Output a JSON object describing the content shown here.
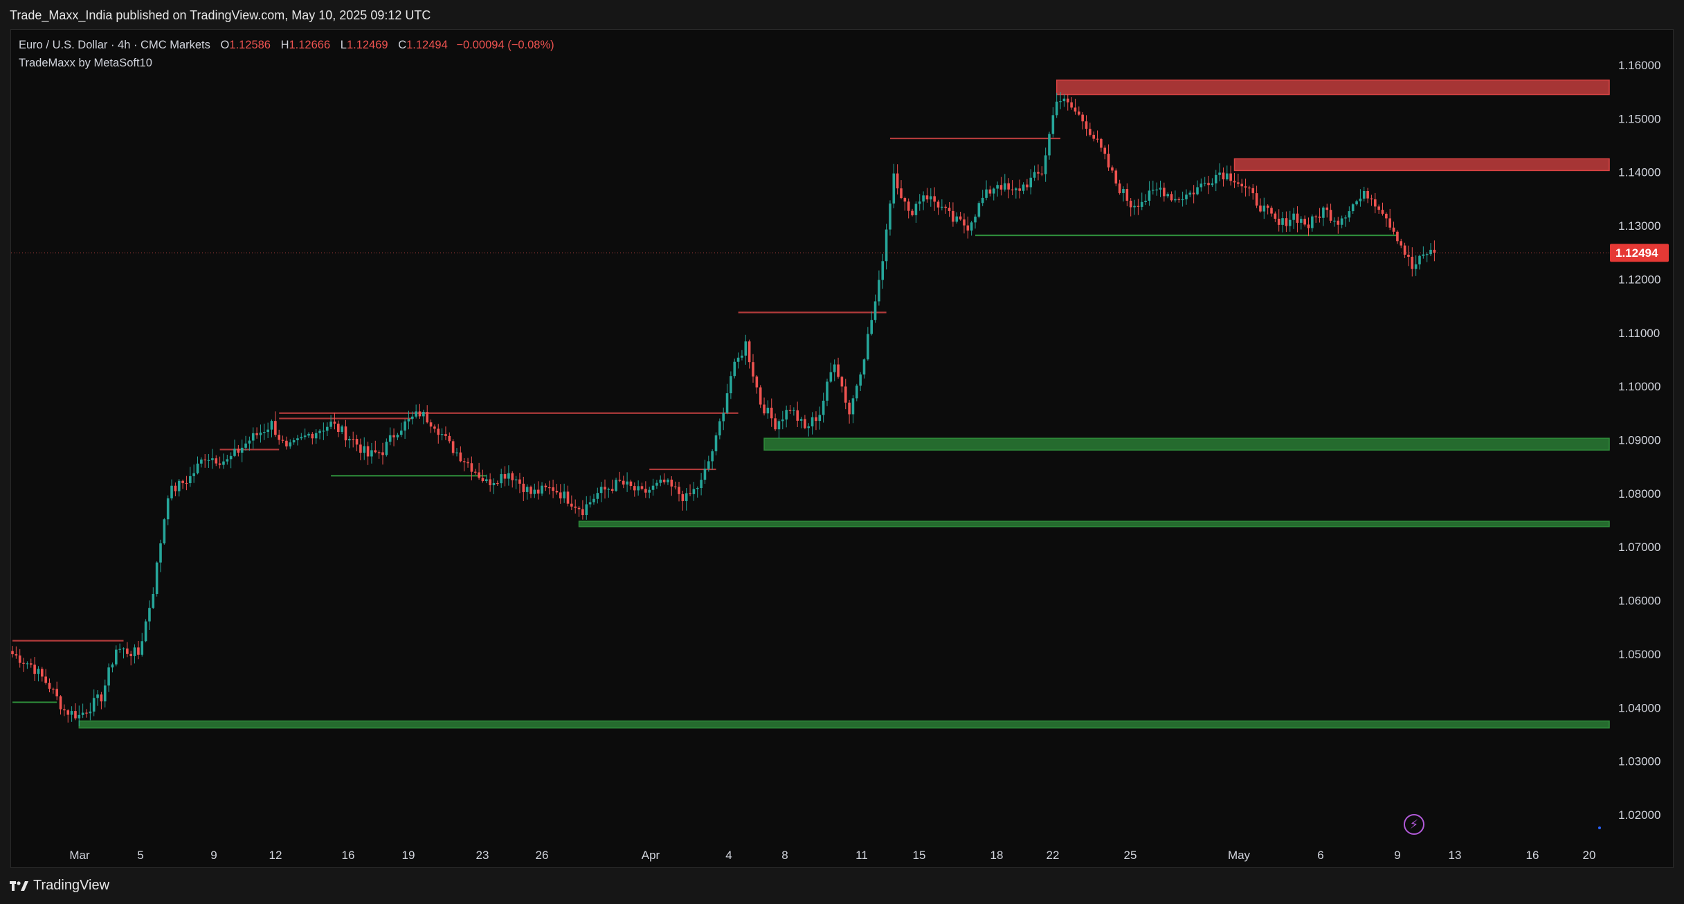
{
  "header": {
    "published": "Trade_Maxx_India published on TradingView.com, May 10, 2025 09:12 UTC"
  },
  "legend": {
    "symbol": "Euro / U.S. Dollar · 4h · CMC Markets",
    "open_label": "O",
    "open": "1.12586",
    "high_label": "H",
    "high": "1.12666",
    "low_label": "L",
    "low": "1.12469",
    "close_label": "C",
    "close": "1.12494",
    "change": "−0.00094 (−0.08%)",
    "indicator": "TradeMaxx by MetaSoft10"
  },
  "footer": {
    "brand": "TradingView"
  },
  "icons": {
    "logo": "tradingview-logo-icon",
    "alert": "lightning-bolt-icon"
  },
  "colors": {
    "bull": "#26a69a",
    "bear": "#ef5350",
    "supply_zone": "#d94343",
    "demand_zone": "#2e8b3a",
    "price_label_bg": "#e53935"
  },
  "chart_data": {
    "type": "candlestick",
    "symbol": "EURUSD",
    "timeframe": "4h",
    "ylim": [
      1.015,
      1.163
    ],
    "y_ticks": [
      "1.16000",
      "1.15000",
      "1.14000",
      "1.13000",
      "1.12000",
      "1.11000",
      "1.10000",
      "1.09000",
      "1.08000",
      "1.07000",
      "1.06000",
      "1.05000",
      "1.04000",
      "1.03000",
      "1.02000"
    ],
    "x_ticks": [
      "Mar",
      "5",
      "9",
      "12",
      "16",
      "19",
      "23",
      "26",
      "Apr",
      "4",
      "8",
      "11",
      "15",
      "18",
      "22",
      "25",
      "May",
      "6",
      "9",
      "13",
      "16",
      "20"
    ],
    "last_price": "1.12494",
    "anchors": [
      [
        0,
        1.05
      ],
      [
        5,
        1.048
      ],
      [
        10,
        1.044
      ],
      [
        14,
        1.0395
      ],
      [
        18,
        1.0385
      ],
      [
        24,
        1.042
      ],
      [
        28,
        1.051
      ],
      [
        34,
        1.05
      ],
      [
        38,
        1.062
      ],
      [
        42,
        1.08
      ],
      [
        48,
        1.083
      ],
      [
        52,
        1.087
      ],
      [
        58,
        1.086
      ],
      [
        64,
        1.09
      ],
      [
        70,
        1.093
      ],
      [
        74,
        1.088
      ],
      [
        80,
        1.091
      ],
      [
        86,
        1.093
      ],
      [
        92,
        1.09
      ],
      [
        96,
        1.087
      ],
      [
        100,
        1.088
      ],
      [
        104,
        1.092
      ],
      [
        110,
        1.095
      ],
      [
        114,
        1.093
      ],
      [
        118,
        1.089
      ],
      [
        124,
        1.085
      ],
      [
        128,
        1.082
      ],
      [
        134,
        1.084
      ],
      [
        140,
        1.08
      ],
      [
        146,
        1.081
      ],
      [
        150,
        1.079
      ],
      [
        154,
        1.077
      ],
      [
        158,
        1.08
      ],
      [
        164,
        1.082
      ],
      [
        170,
        1.08
      ],
      [
        176,
        1.082
      ],
      [
        182,
        1.079
      ],
      [
        186,
        1.082
      ],
      [
        190,
        1.09
      ],
      [
        194,
        1.102
      ],
      [
        198,
        1.108
      ],
      [
        202,
        1.097
      ],
      [
        206,
        1.093
      ],
      [
        210,
        1.096
      ],
      [
        214,
        1.092
      ],
      [
        218,
        1.095
      ],
      [
        222,
        1.105
      ],
      [
        226,
        1.095
      ],
      [
        230,
        1.106
      ],
      [
        234,
        1.119
      ],
      [
        238,
        1.14
      ],
      [
        242,
        1.132
      ],
      [
        246,
        1.136
      ],
      [
        250,
        1.134
      ],
      [
        254,
        1.131
      ],
      [
        258,
        1.13
      ],
      [
        262,
        1.135
      ],
      [
        266,
        1.138
      ],
      [
        270,
        1.136
      ],
      [
        274,
        1.138
      ],
      [
        278,
        1.14
      ],
      [
        282,
        1.154
      ],
      [
        286,
        1.152
      ],
      [
        290,
        1.149
      ],
      [
        294,
        1.144
      ],
      [
        298,
        1.138
      ],
      [
        302,
        1.134
      ],
      [
        306,
        1.135
      ],
      [
        310,
        1.137
      ],
      [
        314,
        1.135
      ],
      [
        318,
        1.136
      ],
      [
        322,
        1.138
      ],
      [
        326,
        1.14
      ],
      [
        330,
        1.139
      ],
      [
        334,
        1.136
      ],
      [
        338,
        1.133
      ],
      [
        342,
        1.13
      ],
      [
        346,
        1.132
      ],
      [
        350,
        1.13
      ],
      [
        354,
        1.133
      ],
      [
        358,
        1.131
      ],
      [
        362,
        1.134
      ],
      [
        366,
        1.136
      ],
      [
        370,
        1.133
      ],
      [
        374,
        1.128
      ],
      [
        378,
        1.122
      ],
      [
        382,
        1.125
      ],
      [
        384,
        1.12494
      ]
    ],
    "zones": [
      {
        "kind": "supply",
        "top": 1.1572,
        "bottom": 1.1545,
        "from": 282,
        "to": "end"
      },
      {
        "kind": "supply",
        "top": 1.1425,
        "bottom": 1.1403,
        "from": 330,
        "to": "end"
      },
      {
        "kind": "demand",
        "top": 1.0903,
        "bottom": 1.0881,
        "from": 203,
        "to": "end"
      },
      {
        "kind": "demand",
        "top": 1.0748,
        "bottom": 1.0738,
        "from": 153,
        "to": "end"
      },
      {
        "kind": "demand",
        "top": 1.0375,
        "bottom": 1.0362,
        "from": 18,
        "to": "end"
      }
    ],
    "levels": [
      {
        "kind": "resistance",
        "price": 1.0525,
        "from": 0,
        "to": 30
      },
      {
        "kind": "resistance",
        "price": 1.1463,
        "from": 237,
        "to": 283
      },
      {
        "kind": "resistance",
        "price": 1.1138,
        "from": 196,
        "to": 236
      },
      {
        "kind": "resistance",
        "price": 1.095,
        "from": 72,
        "to": 196
      },
      {
        "kind": "resistance",
        "price": 1.094,
        "from": 72,
        "to": 108
      },
      {
        "kind": "resistance",
        "price": 1.0882,
        "from": 56,
        "to": 72
      },
      {
        "kind": "resistance",
        "price": 1.0845,
        "from": 172,
        "to": 190
      },
      {
        "kind": "support",
        "price": 1.041,
        "from": 0,
        "to": 12
      },
      {
        "kind": "support",
        "price": 1.0833,
        "from": 86,
        "to": 128
      },
      {
        "kind": "support",
        "price": 1.1282,
        "from": 260,
        "to": 374
      }
    ]
  }
}
